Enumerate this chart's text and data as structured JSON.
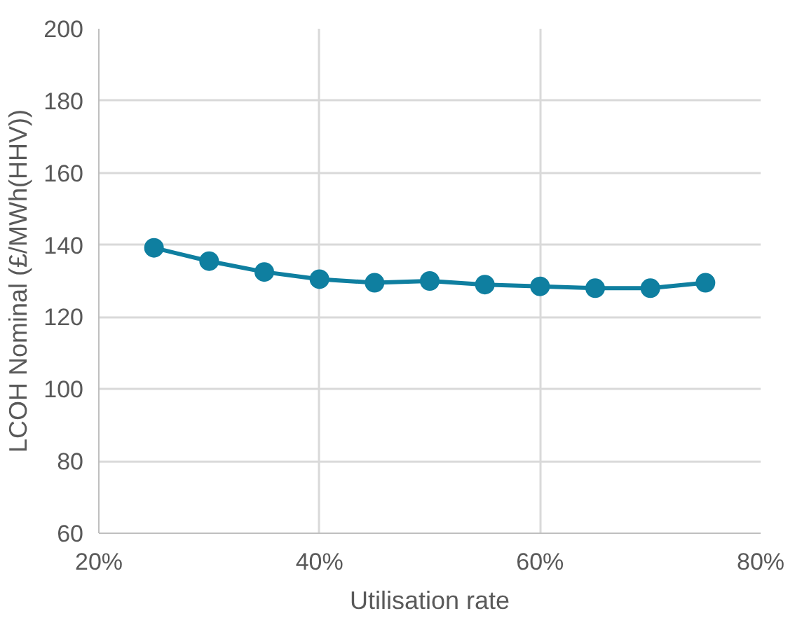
{
  "chart_data": {
    "type": "line",
    "xlabel": "Utilisation rate",
    "ylabel": "LCOH Nominal (£/MWh(HHV))",
    "x": [
      0.25,
      0.3,
      0.35,
      0.4,
      0.45,
      0.5,
      0.55,
      0.6,
      0.65,
      0.7,
      0.75
    ],
    "series": [
      {
        "color": "#0f7fa0",
        "values": [
          139.2,
          135.5,
          132.5,
          130.5,
          129.5,
          130,
          129,
          128.5,
          128,
          128,
          129.5
        ]
      }
    ],
    "xlim": [
      0.2,
      0.8
    ],
    "xticks": [
      {
        "value": 0.2,
        "label": "20%"
      },
      {
        "value": 0.4,
        "label": "40%"
      },
      {
        "value": 0.6,
        "label": "60%"
      },
      {
        "value": 0.8,
        "label": "80%"
      }
    ],
    "ylim": [
      60,
      200
    ],
    "yticks": [
      60,
      80,
      100,
      120,
      140,
      160,
      180,
      200
    ],
    "grid": true,
    "marker": "circle",
    "line_style": "solid"
  }
}
